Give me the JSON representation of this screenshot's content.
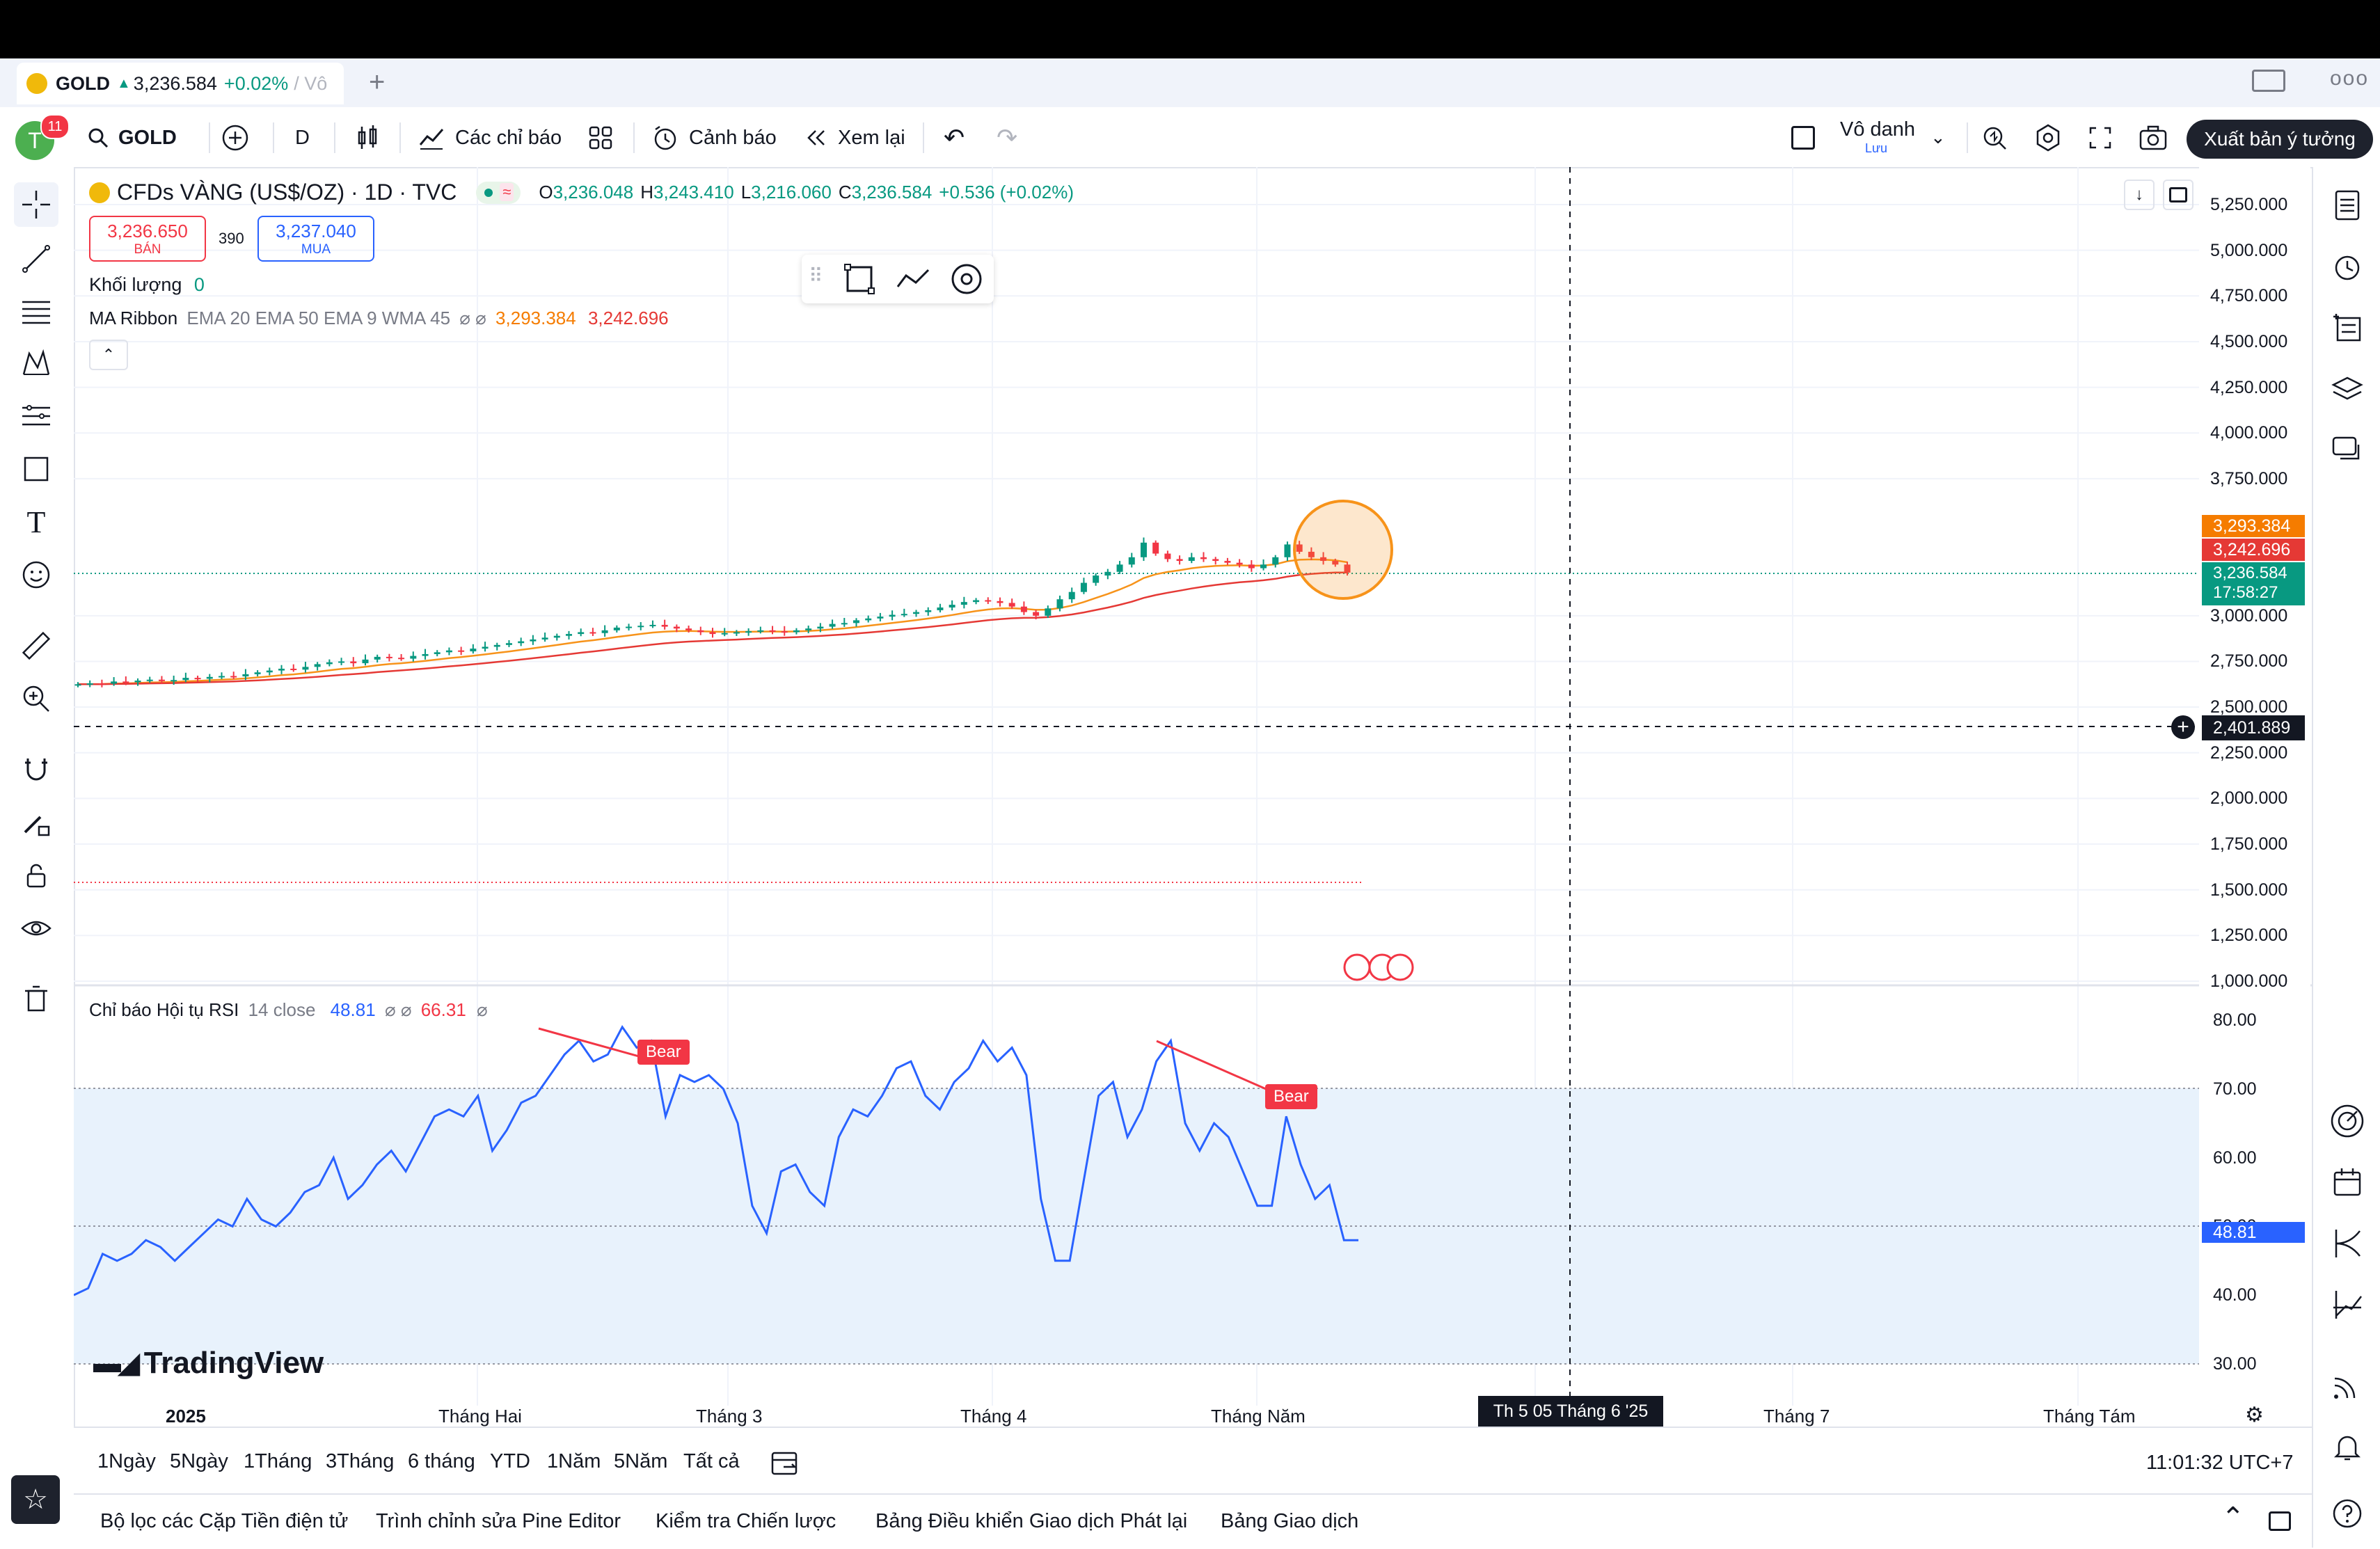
{
  "tab": {
    "symbol": "GOLD",
    "price": "3,236.584",
    "change": "+0.02%",
    "extra": "/ Vô"
  },
  "toolbar": {
    "avatar_letter": "T",
    "notif_count": "11",
    "symbol": "GOLD",
    "interval": "D",
    "indicators": "Các chỉ báo",
    "alerts": "Cảnh báo",
    "replay": "Xem lại",
    "layout_name": "Vô danh",
    "layout_save": "Lưu",
    "publish": "Xuất bản ý tưởng"
  },
  "legend": {
    "title": "CFDs VÀNG (US$/OZ) · 1D · TVC",
    "o_label": "O",
    "o": "3,236.048",
    "h_label": "H",
    "h": "3,243.410",
    "l_label": "L",
    "l": "3,216.060",
    "c_label": "C",
    "c": "3,236.584",
    "chg": "+0.536 (+0.02%)",
    "sell_price": "3,236.650",
    "sell_label": "BÁN",
    "spread": "390",
    "buy_price": "3,237.040",
    "buy_label": "MUA",
    "volume_label": "Khối lượng",
    "volume_value": "0",
    "ma_label": "MA Ribbon",
    "ma_params": "EMA 20 EMA 50 EMA 9 WMA 45",
    "ma_val1": "3,293.384",
    "ma_val2": "3,242.696"
  },
  "rsi_legend": {
    "label": "Chỉ báo Hội tụ RSI",
    "params": "14 close",
    "v1": "48.81",
    "v2": "66.31"
  },
  "price_scale": [
    "5,250.000",
    "5,000.000",
    "4,750.000",
    "4,500.000",
    "4,250.000",
    "4,000.000",
    "3,750.000",
    "3,000.000",
    "2,750.000",
    "2,500.000",
    "2,250.000",
    "2,000.000",
    "1,750.000",
    "1,500.000",
    "1,250.000",
    "1,000.000"
  ],
  "price_tags": {
    "ma1": "3,293.384",
    "ma2": "3,242.696",
    "last": "3,236.584",
    "countdown": "17:58:27",
    "cursor": "2,401.889"
  },
  "rsi_scale": [
    "80.00",
    "70.00",
    "60.00",
    "50.00",
    "40.00",
    "30.00"
  ],
  "rsi_tag": "48.81",
  "bear_label": "Bear",
  "time_labels": [
    "2025",
    "Tháng Hai",
    "Tháng 3",
    "Tháng 4",
    "Tháng Năm",
    "Tháng 7",
    "Tháng Tám"
  ],
  "cursor_time": "Th 5 05 Tháng 6 '25",
  "watermark": "TradingView",
  "ranges": [
    "1Ngày",
    "5Ngày",
    "1Tháng",
    "3Tháng",
    "6 tháng",
    "YTD",
    "1Năm",
    "5Năm",
    "Tất cả"
  ],
  "clock": "11:01:32 UTC+7",
  "footer": [
    "Bộ lọc các Cặp Tiền điện tử",
    "Trình chỉnh sửa Pine Editor",
    "Kiểm tra Chiến lược",
    "Bảng Điều khiển Giao dịch Phát lại",
    "Bảng Giao dịch"
  ],
  "colors": {
    "up": "#089981",
    "down": "#f23645",
    "ema": "#f7931a",
    "wma": "#e53935",
    "rsi": "#2962ff",
    "accent": "#2962ff"
  },
  "chart_data": {
    "type": "candlestick",
    "note_series": "price",
    "price_range": [
      1000,
      5250
    ],
    "close": [
      2625,
      2630,
      2628,
      2640,
      2636,
      2645,
      2650,
      2642,
      2648,
      2660,
      2655,
      2665,
      2670,
      2668,
      2680,
      2690,
      2700,
      2710,
      2705,
      2720,
      2735,
      2745,
      2750,
      2740,
      2760,
      2775,
      2770,
      2765,
      2780,
      2790,
      2800,
      2810,
      2805,
      2820,
      2830,
      2840,
      2850,
      2860,
      2870,
      2880,
      2890,
      2900,
      2910,
      2905,
      2920,
      2935,
      2940,
      2945,
      2950,
      2940,
      2930,
      2920,
      2910,
      2900,
      2905,
      2910,
      2915,
      2920,
      2915,
      2910,
      2920,
      2930,
      2940,
      2955,
      2960,
      2975,
      2985,
      2995,
      3005,
      3010,
      3020,
      3030,
      3045,
      3060,
      3075,
      3085,
      3080,
      3070,
      3050,
      3020,
      3000,
      3040,
      3090,
      3130,
      3180,
      3220,
      3240,
      3280,
      3320,
      3400,
      3340,
      3310,
      3300,
      3320,
      3310,
      3300,
      3290,
      3280,
      3260,
      3280,
      3320,
      3390,
      3350,
      3320,
      3300,
      3280,
      3236
    ]
  }
}
